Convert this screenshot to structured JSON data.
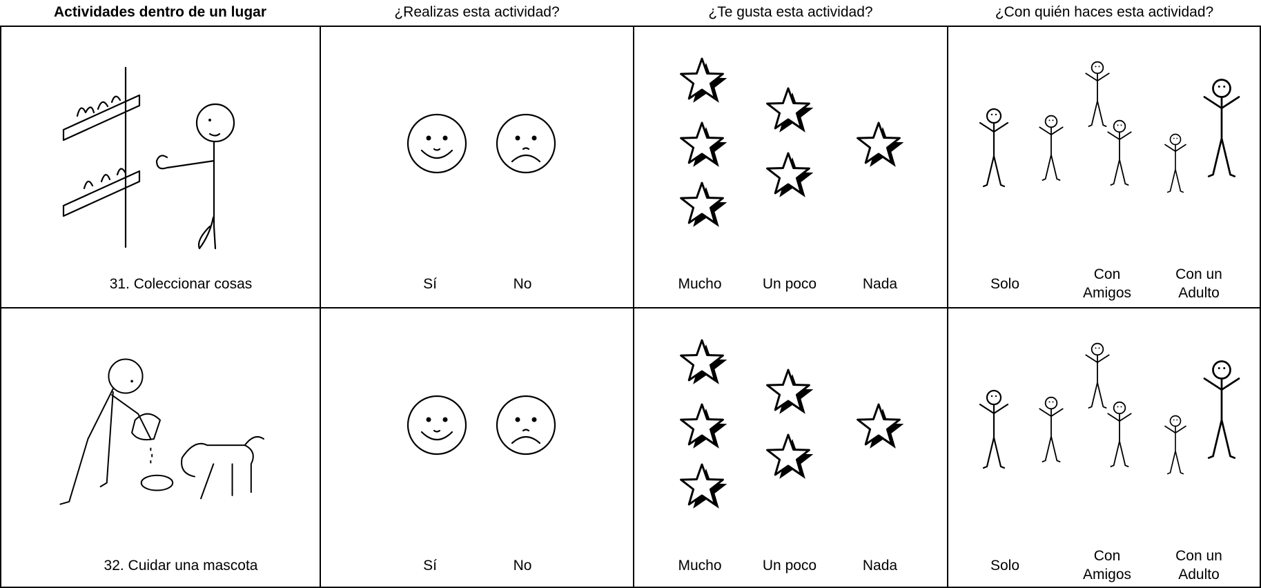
{
  "headers": [
    "Actividades dentro de un lugar",
    "¿Realizas esta actividad?",
    "¿Te gusta esta actividad?",
    "¿Con quién haces esta actividad?"
  ],
  "rows": [
    {
      "activity": "31.  Coleccionar cosas",
      "do_options": [
        "Sí",
        "No"
      ],
      "like_options": [
        "Mucho",
        "Un poco",
        "Nada"
      ],
      "with_options": [
        "Solo",
        "Con Amigos",
        "Con un Adulto"
      ]
    },
    {
      "activity": "32.  Cuidar una mascota",
      "do_options": [
        "Sí",
        "No"
      ],
      "like_options": [
        "Mucho",
        "Un poco",
        "Nada"
      ],
      "with_options": [
        "Solo",
        "Con Amigos",
        "Con un Adulto"
      ]
    }
  ]
}
